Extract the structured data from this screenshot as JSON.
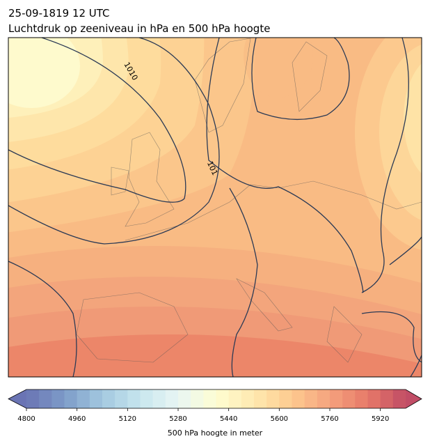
{
  "chart_data": {
    "type": "colorbar-map",
    "title": "25-09-1819 12 UTC",
    "subtitle": "Luchtdruk op zeeniveau in hPa en 500 hPa hoogte",
    "contour_labels": [
      "1010",
      "101"
    ],
    "colorbar_label": "500 hPa hoogte in meter",
    "xlim": [
      4800,
      6000
    ],
    "xticks": [
      4800,
      4960,
      5120,
      5280,
      5440,
      5600,
      5760,
      5920
    ],
    "levels": 30,
    "colors": [
      "#6a74b4",
      "#7d9bc8",
      "#a3c8e0",
      "#c7e6ee",
      "#e8f6f4",
      "#fefdd2",
      "#fee9af",
      "#fdca8f",
      "#f5a27e",
      "#e77968",
      "#c14d66"
    ]
  }
}
